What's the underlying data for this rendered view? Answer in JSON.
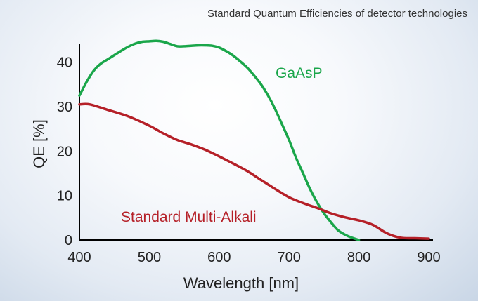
{
  "chart_data": {
    "type": "line",
    "title": "Standard Quantum Efficiencies of detector technologies",
    "xlabel": "Wavelength [nm]",
    "ylabel": "QE [%]",
    "xlim": [
      400,
      900
    ],
    "ylim": [
      0,
      45
    ],
    "x_ticks": [
      400,
      500,
      600,
      700,
      800,
      900
    ],
    "y_ticks": [
      0,
      10,
      20,
      30,
      40
    ],
    "grid": false,
    "legend": "inline labels",
    "series": [
      {
        "name": "GaAsP",
        "color": "#1aa64a",
        "points": [
          [
            400,
            32.5
          ],
          [
            410,
            35.5
          ],
          [
            420,
            38
          ],
          [
            430,
            39.6
          ],
          [
            440,
            40.6
          ],
          [
            450,
            41.6
          ],
          [
            460,
            42.6
          ],
          [
            470,
            43.5
          ],
          [
            480,
            44.2
          ],
          [
            490,
            44.6
          ],
          [
            500,
            44.7
          ],
          [
            510,
            44.8
          ],
          [
            520,
            44.6
          ],
          [
            530,
            44.1
          ],
          [
            540,
            43.6
          ],
          [
            550,
            43.6
          ],
          [
            560,
            43.7
          ],
          [
            570,
            43.8
          ],
          [
            580,
            43.8
          ],
          [
            590,
            43.7
          ],
          [
            600,
            43.3
          ],
          [
            610,
            42.5
          ],
          [
            620,
            41.5
          ],
          [
            630,
            40.2
          ],
          [
            640,
            38.8
          ],
          [
            650,
            37
          ],
          [
            660,
            35
          ],
          [
            670,
            32.5
          ],
          [
            680,
            29.5
          ],
          [
            690,
            26
          ],
          [
            700,
            22.5
          ],
          [
            710,
            18.5
          ],
          [
            720,
            15
          ],
          [
            730,
            11.5
          ],
          [
            740,
            8.5
          ],
          [
            750,
            6
          ],
          [
            760,
            4
          ],
          [
            770,
            2.2
          ],
          [
            780,
            1.2
          ],
          [
            790,
            0.5
          ],
          [
            800,
            0
          ]
        ]
      },
      {
        "name": "Standard Multi-Alkali",
        "color": "#b52028",
        "points": [
          [
            400,
            30.5
          ],
          [
            415,
            30.5
          ],
          [
            440,
            29.3
          ],
          [
            470,
            27.8
          ],
          [
            500,
            25.7
          ],
          [
            520,
            24
          ],
          [
            540,
            22.5
          ],
          [
            560,
            21.5
          ],
          [
            580,
            20.3
          ],
          [
            600,
            18.8
          ],
          [
            620,
            17.2
          ],
          [
            640,
            15.5
          ],
          [
            660,
            13.5
          ],
          [
            680,
            11.5
          ],
          [
            700,
            9.6
          ],
          [
            720,
            8.3
          ],
          [
            740,
            7.2
          ],
          [
            760,
            6
          ],
          [
            780,
            5.1
          ],
          [
            800,
            4.4
          ],
          [
            820,
            3.4
          ],
          [
            840,
            1.5
          ],
          [
            860,
            0.5
          ],
          [
            880,
            0.4
          ],
          [
            900,
            0.3
          ]
        ]
      }
    ]
  }
}
